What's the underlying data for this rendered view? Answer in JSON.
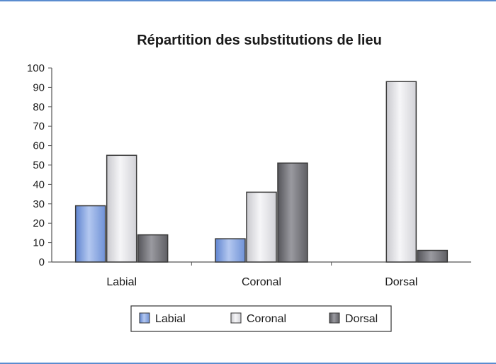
{
  "chart_data": {
    "type": "bar",
    "title": "Répartition des substitutions de lieu",
    "xlabel": "",
    "ylabel": "",
    "categories": [
      "Labial",
      "Coronal",
      "Dorsal"
    ],
    "series": [
      {
        "name": "Labial",
        "values": [
          29,
          12,
          0
        ],
        "color": "#7f9fdc"
      },
      {
        "name": "Coronal",
        "values": [
          55,
          36,
          93
        ],
        "color": "#e2e2e6"
      },
      {
        "name": "Dorsal",
        "values": [
          14,
          51,
          6
        ],
        "color": "#77777c"
      }
    ],
    "ylim": [
      0,
      100
    ],
    "yticks": [
      0,
      10,
      20,
      30,
      40,
      50,
      60,
      70,
      80,
      90,
      100
    ],
    "grid": false,
    "legend": "bottom"
  }
}
